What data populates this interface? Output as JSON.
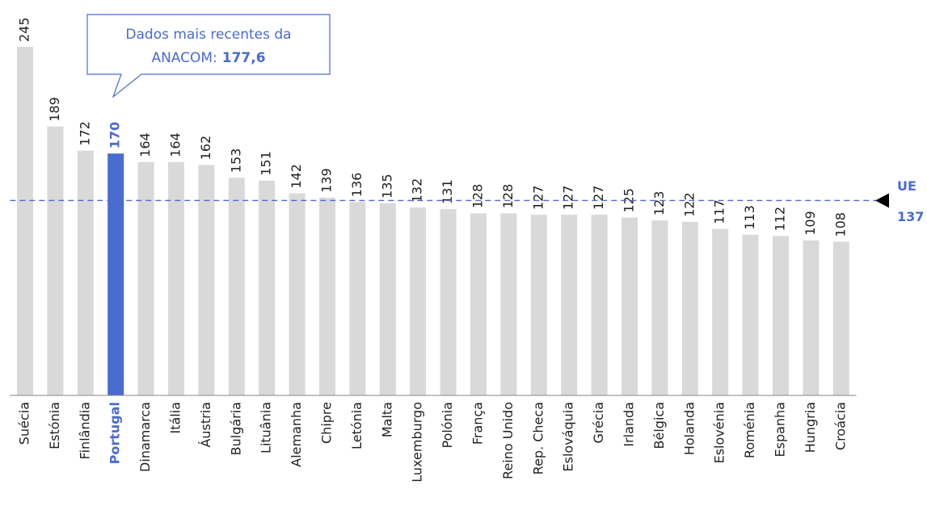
{
  "chart_data": {
    "type": "bar",
    "categories": [
      "Suécia",
      "Estónia",
      "Finlândia",
      "Portugal",
      "Dinamarca",
      "Itália",
      "Áustria",
      "Bulgária",
      "Lituânia",
      "Alemanha",
      "Chipre",
      "Letónia",
      "Malta",
      "Luxemburgo",
      "Polónia",
      "França",
      "Reino Unido",
      "Rep. Checa",
      "Eslováquia",
      "Grécia",
      "Irlanda",
      "Bélgica",
      "Holanda",
      "Eslovénia",
      "Roménia",
      "Espanha",
      "Hungria",
      "Croácia"
    ],
    "values": [
      245,
      189,
      172,
      170,
      164,
      164,
      162,
      153,
      151,
      142,
      139,
      136,
      135,
      132,
      131,
      128,
      128,
      127,
      127,
      127,
      125,
      123,
      122,
      117,
      113,
      112,
      109,
      108
    ],
    "color": "#d9d9d9",
    "colors": [
      "#d9d9d9",
      "#d9d9d9",
      "#d9d9d9",
      "#4a6bd0",
      "#d9d9d9",
      "#d9d9d9",
      "#d9d9d9",
      "#d9d9d9",
      "#d9d9d9",
      "#d9d9d9",
      "#d9d9d9",
      "#d9d9d9",
      "#d9d9d9",
      "#d9d9d9",
      "#d9d9d9",
      "#d9d9d9",
      "#d9d9d9",
      "#d9d9d9",
      "#d9d9d9",
      "#d9d9d9",
      "#d9d9d9",
      "#d9d9d9",
      "#d9d9d9",
      "#d9d9d9",
      "#d9d9d9",
      "#d9d9d9",
      "#d9d9d9",
      "#d9d9d9"
    ],
    "ylim": [
      0,
      250
    ],
    "reference": {
      "label": "UE",
      "value": 137,
      "color": "#4a6bd0"
    },
    "annotation": {
      "lines": [
        "Dados mais recentes da",
        "ANACOM:"
      ],
      "highlight": "177,6"
    }
  }
}
